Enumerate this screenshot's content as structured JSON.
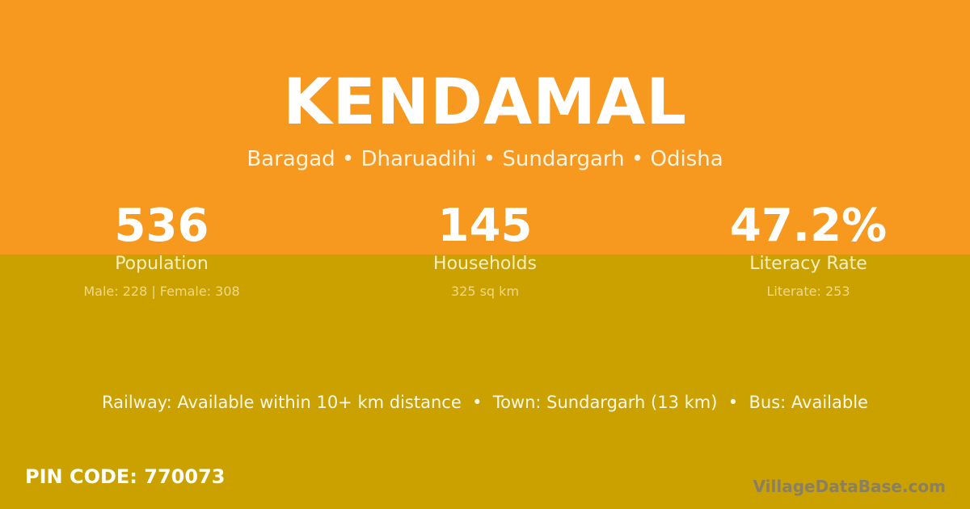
{
  "village": {
    "name": "KENDAMAL",
    "hierarchy": "Baragad • Dharuadihi • Sundargarh • Odisha"
  },
  "stats": [
    {
      "value": "536",
      "label": "Population",
      "sub": "Male: 228 | Female: 308"
    },
    {
      "value": "145",
      "label": "Households",
      "sub": "325 sq km"
    },
    {
      "value": "47.2%",
      "label": "Literacy Rate",
      "sub": "Literate: 253"
    }
  ],
  "transport": "Railway: Available within 10+ km distance  •  Town: Sundargarh (13 km)  •  Bus: Available",
  "pin": "PIN CODE: 770073",
  "watermark": "VillageDataBase.com",
  "colors": {
    "top": "#f7981f",
    "bottom": "#cba100"
  }
}
